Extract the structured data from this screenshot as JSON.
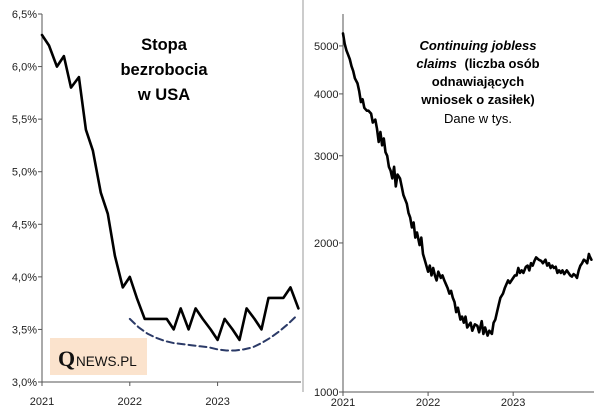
{
  "chart_data": [
    {
      "type": "line",
      "title_lines": [
        "Stopa",
        "bezrobocia",
        "w USA"
      ],
      "xlabel": "",
      "ylabel": "",
      "ylim": [
        3.0,
        6.5
      ],
      "xlim": [
        2021.0,
        2023.95
      ],
      "yticks": [
        3.0,
        3.5,
        4.0,
        4.5,
        5.0,
        5.5,
        6.0,
        6.5
      ],
      "ytick_labels": [
        "3,0%",
        "3,5%",
        "4,0%",
        "4,5%",
        "5,0%",
        "5,5%",
        "6,0%",
        "6,5%"
      ],
      "xticks": [
        2021,
        2022,
        2023
      ],
      "xtick_labels": [
        "2021",
        "2022",
        "2023"
      ],
      "grid": false,
      "series": [
        {
          "name": "Stopa bezrobocia",
          "color": "#000000",
          "style": "solid",
          "x": [
            2021.0,
            2021.08,
            2021.17,
            2021.25,
            2021.33,
            2021.42,
            2021.5,
            2021.58,
            2021.67,
            2021.75,
            2021.83,
            2021.92,
            2022.0,
            2022.08,
            2022.17,
            2022.25,
            2022.33,
            2022.42,
            2022.5,
            2022.58,
            2022.67,
            2022.75,
            2022.83,
            2022.92,
            2023.0,
            2023.08,
            2023.17,
            2023.25,
            2023.33,
            2023.42,
            2023.5,
            2023.58,
            2023.67,
            2023.75,
            2023.83,
            2023.92
          ],
          "values": [
            6.3,
            6.2,
            6.0,
            6.1,
            5.8,
            5.9,
            5.4,
            5.2,
            4.8,
            4.6,
            4.2,
            3.9,
            4.0,
            3.8,
            3.6,
            3.6,
            3.6,
            3.6,
            3.5,
            3.7,
            3.5,
            3.7,
            3.6,
            3.5,
            3.4,
            3.6,
            3.5,
            3.4,
            3.7,
            3.6,
            3.5,
            3.8,
            3.8,
            3.8,
            3.9,
            3.7
          ]
        },
        {
          "name": "Trend",
          "color": "#2b3a67",
          "style": "dashed",
          "x": [
            2022.0,
            2022.1,
            2022.2,
            2022.3,
            2022.4,
            2022.5,
            2022.6,
            2022.7,
            2022.8,
            2022.9,
            2023.0,
            2023.1,
            2023.2,
            2023.3,
            2023.4,
            2023.5,
            2023.6,
            2023.7,
            2023.8,
            2023.9
          ],
          "values": [
            3.6,
            3.52,
            3.46,
            3.42,
            3.39,
            3.37,
            3.36,
            3.35,
            3.34,
            3.33,
            3.31,
            3.3,
            3.3,
            3.31,
            3.33,
            3.37,
            3.42,
            3.48,
            3.55,
            3.63
          ]
        }
      ]
    },
    {
      "type": "line",
      "title_italic_lines": [
        "Continuing jobless",
        "claims"
      ],
      "title_bold_lines": [
        "(liczba osób",
        "odnawiających",
        "wniosek o zasiłek)"
      ],
      "subtitle": "Dane w tys.",
      "xlabel": "",
      "ylabel": "",
      "yscale": "log",
      "ylim": [
        1000,
        5800
      ],
      "xlim": [
        2021.0,
        2023.95
      ],
      "yticks": [
        1000,
        2000,
        3000,
        4000,
        5000
      ],
      "ytick_labels": [
        "1000",
        "2000",
        "3000",
        "4000",
        "5000"
      ],
      "xticks": [
        2021,
        2022,
        2023
      ],
      "xtick_labels": [
        "2021",
        "2022",
        "2023"
      ],
      "grid": false,
      "series": [
        {
          "name": "Continuing jobless claims",
          "color": "#000000",
          "style": "solid",
          "x": [
            2021.0,
            2021.02,
            2021.04,
            2021.06,
            2021.08,
            2021.1,
            2021.12,
            2021.14,
            2021.17,
            2021.19,
            2021.21,
            2021.23,
            2021.25,
            2021.28,
            2021.3,
            2021.33,
            2021.35,
            2021.38,
            2021.4,
            2021.42,
            2021.44,
            2021.46,
            2021.48,
            2021.5,
            2021.52,
            2021.54,
            2021.56,
            2021.58,
            2021.6,
            2021.62,
            2021.64,
            2021.67,
            2021.69,
            2021.71,
            2021.73,
            2021.75,
            2021.77,
            2021.79,
            2021.81,
            2021.83,
            2021.85,
            2021.87,
            2021.9,
            2021.92,
            2021.94,
            2021.96,
            2022.0,
            2022.02,
            2022.04,
            2022.06,
            2022.08,
            2022.1,
            2022.12,
            2022.15,
            2022.17,
            2022.19,
            2022.21,
            2022.23,
            2022.25,
            2022.27,
            2022.29,
            2022.31,
            2022.33,
            2022.35,
            2022.38,
            2022.4,
            2022.42,
            2022.44,
            2022.46,
            2022.5,
            2022.52,
            2022.55,
            2022.58,
            2022.6,
            2022.63,
            2022.65,
            2022.67,
            2022.7,
            2022.72,
            2022.75,
            2022.77,
            2022.79,
            2022.81,
            2022.83,
            2022.85,
            2022.88,
            2022.9,
            2022.92,
            2022.94,
            2022.96,
            2023.0,
            2023.02,
            2023.04,
            2023.06,
            2023.08,
            2023.1,
            2023.12,
            2023.15,
            2023.17,
            2023.19,
            2023.21,
            2023.23,
            2023.25,
            2023.27,
            2023.3,
            2023.33,
            2023.35,
            2023.38,
            2023.4,
            2023.42,
            2023.44,
            2023.46,
            2023.48,
            2023.5,
            2023.52,
            2023.54,
            2023.56,
            2023.58,
            2023.6,
            2023.63,
            2023.65,
            2023.67,
            2023.69,
            2023.71,
            2023.73,
            2023.75,
            2023.77,
            2023.79,
            2023.81,
            2023.83,
            2023.85,
            2023.87,
            2023.89,
            2023.9,
            2023.92
          ],
          "values": [
            5300,
            5050,
            4900,
            4800,
            4700,
            4550,
            4450,
            4300,
            4200,
            4050,
            3850,
            3900,
            3750,
            3700,
            3700,
            3650,
            3500,
            3550,
            3400,
            3200,
            3350,
            3150,
            3250,
            3050,
            3000,
            2850,
            2800,
            2700,
            2850,
            2600,
            2750,
            2700,
            2600,
            2500,
            2450,
            2400,
            2300,
            2250,
            2150,
            2200,
            2050,
            2100,
            1980,
            2050,
            1900,
            1850,
            1750,
            1800,
            1720,
            1780,
            1720,
            1680,
            1750,
            1700,
            1720,
            1680,
            1650,
            1620,
            1580,
            1600,
            1550,
            1520,
            1450,
            1480,
            1400,
            1420,
            1380,
            1420,
            1350,
            1380,
            1330,
            1370,
            1360,
            1320,
            1390,
            1310,
            1350,
            1300,
            1330,
            1310,
            1380,
            1400,
            1450,
            1500,
            1550,
            1580,
            1620,
            1650,
            1680,
            1660,
            1700,
            1720,
            1720,
            1780,
            1740,
            1760,
            1740,
            1790,
            1800,
            1760,
            1820,
            1800,
            1840,
            1870,
            1850,
            1840,
            1820,
            1850,
            1800,
            1820,
            1780,
            1800,
            1780,
            1790,
            1740,
            1760,
            1740,
            1760,
            1730,
            1760,
            1740,
            1720,
            1710,
            1730,
            1720,
            1700,
            1760,
            1800,
            1820,
            1850,
            1840,
            1820,
            1900,
            1880,
            1850
          ]
        }
      ]
    }
  ],
  "logo": {
    "letter": "Q",
    "text": "NEWS.PL",
    "background": "#fbe3cd"
  }
}
